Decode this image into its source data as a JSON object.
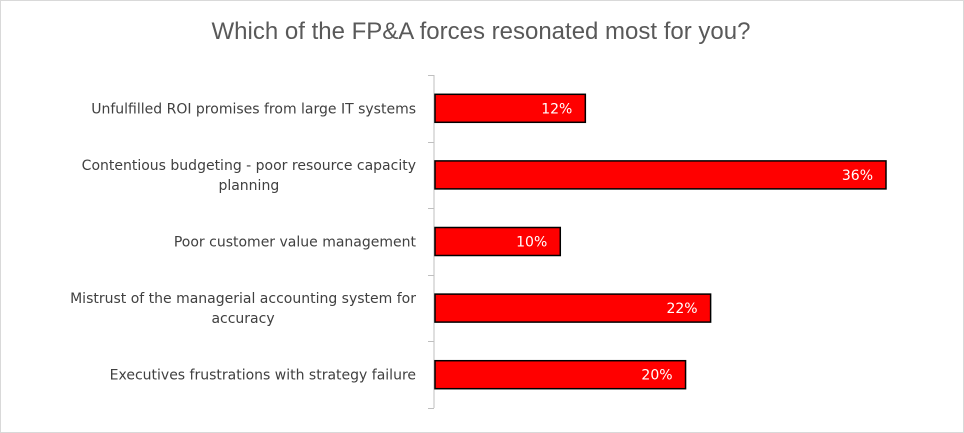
{
  "chart_data": {
    "type": "bar",
    "orientation": "horizontal",
    "title": "Which of the FP&A forces resonated most for you?",
    "categories": [
      "Unfulfilled ROI promises from large IT systems",
      "Contentious budgeting - poor resource capacity planning",
      "Poor customer value management",
      "Mistrust of the managerial accounting system for accuracy",
      "Executives frustrations with strategy failure"
    ],
    "category_lines": [
      [
        "Unfulfilled ROI promises from large IT systems"
      ],
      [
        "Contentious budgeting - poor resource capacity",
        "planning"
      ],
      [
        "Poor customer value management"
      ],
      [
        "Mistrust of the managerial accounting system for",
        "accuracy"
      ],
      [
        "Executives frustrations with strategy failure"
      ]
    ],
    "values": [
      12,
      36,
      10,
      22,
      20
    ],
    "value_labels": [
      "12%",
      "36%",
      "10%",
      "22%",
      "20%"
    ],
    "unit": "%",
    "xlim": [
      0,
      36
    ],
    "bar_color": "#ff0000",
    "bar_border": "#000000",
    "axis_color": "#bfbfbf",
    "grid": false,
    "legend": "none"
  }
}
